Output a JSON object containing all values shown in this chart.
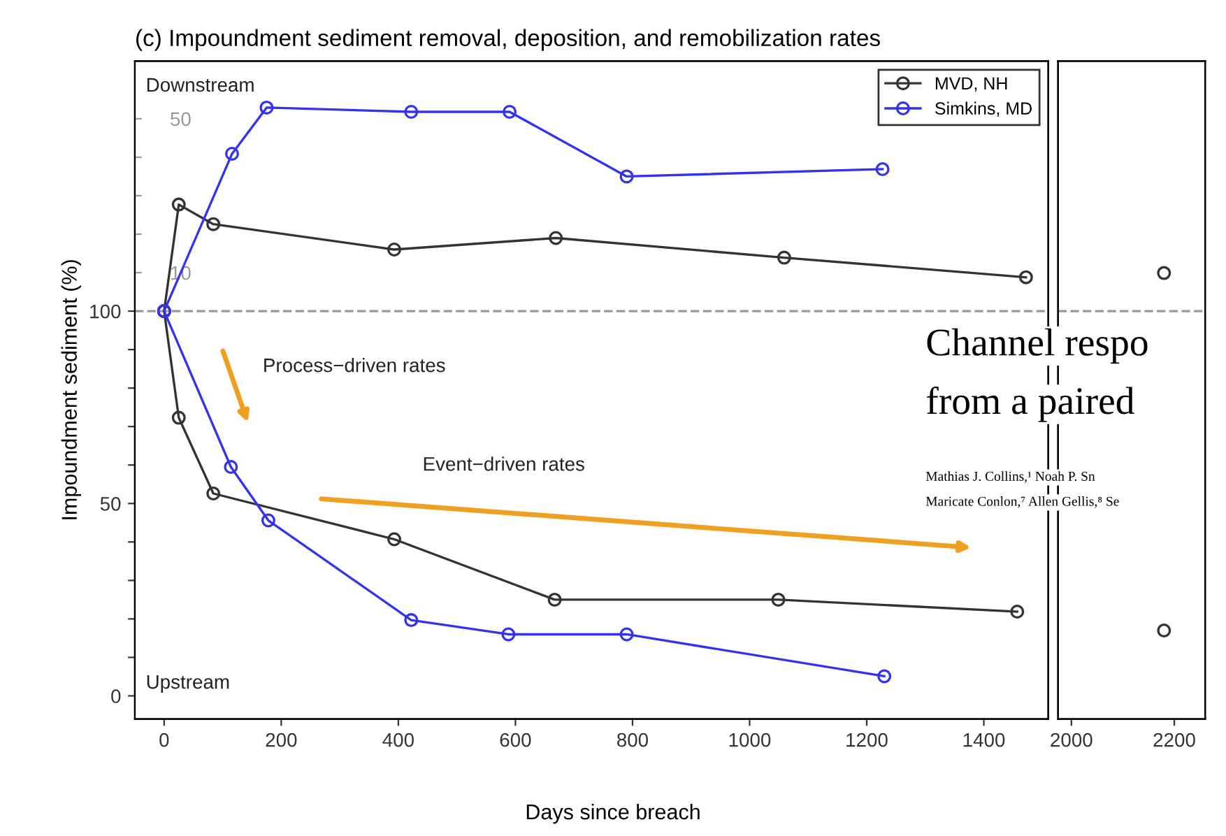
{
  "chart_data": [
    {
      "type": "line",
      "title": "(c) Impoundment sediment removal, deposition, and remobilization rates",
      "xlabel": "Days since breach",
      "ylabel": "Impoundment sediment (%)",
      "marker": "circle",
      "line_style": "solid",
      "grid": false,
      "legend": "top right",
      "xlim": [
        -50,
        1510
      ],
      "xticks": [
        0,
        200,
        400,
        600,
        800,
        1000,
        1200,
        1400
      ],
      "ylim": [
        -6,
        165
      ],
      "yticks": [
        0,
        {
          "value": 10,
          "label": null
        },
        {
          "value": 20,
          "label": null
        },
        {
          "value": 30,
          "label": null
        },
        {
          "value": 40,
          "label": null
        },
        50,
        {
          "value": 60,
          "label": null
        },
        {
          "value": 70,
          "label": null
        },
        {
          "value": 80,
          "label": null
        },
        {
          "value": 90,
          "label": null
        },
        100
      ],
      "y2lim": [
        -106,
        65
      ],
      "y2ticks": [
        10,
        {
          "value": 20,
          "label": null
        },
        {
          "value": 30,
          "label": null
        },
        {
          "value": 40,
          "label": null
        },
        50
      ],
      "ref_lines": [
        {
          "axis": "y",
          "value": 100,
          "color": "#999999",
          "line_style": "dashed"
        }
      ],
      "series": [
        {
          "name": "MVD, NH",
          "color": "#333333",
          "axis": "y2",
          "x": [
            0,
            25,
            84,
            393,
            669,
            1059,
            1472
          ],
          "values": [
            0,
            27.7,
            22.6,
            16,
            19,
            13.9,
            8.8
          ]
        },
        {
          "name": "Simkins, MD",
          "color": "#3333ee",
          "axis": "y2",
          "x": [
            0,
            116,
            175,
            422,
            590,
            790,
            1227
          ],
          "values": [
            0,
            40.9,
            52.9,
            51.8,
            51.8,
            35,
            36.9
          ]
        },
        {
          "color": "#333333",
          "x": [
            0,
            25,
            84,
            393,
            667,
            1049,
            1457
          ],
          "values": [
            100,
            72.3,
            52.6,
            40.7,
            25,
            25,
            21.9
          ]
        },
        {
          "color": "#3333ee",
          "x": [
            0,
            114,
            178,
            422,
            588,
            790,
            1230
          ],
          "values": [
            100,
            59.5,
            45.6,
            19.7,
            16,
            16,
            5.1
          ]
        }
      ],
      "annotations": [
        "Downstream",
        "Upstream",
        "Process−driven rates",
        "Event−driven rates",
        "Channel respo",
        "from a paired",
        "Mathias J. Collins,¹ Noah P. Sn",
        "Maricate Conlon,⁷ Allen Gellis,⁸ Se"
      ]
    },
    {
      "type": "line",
      "marker": "circle",
      "line_style": "solid",
      "grid": false,
      "tick_labels": "x",
      "xlim": [
        1974,
        2260
      ],
      "xticks": [
        2000,
        2200
      ],
      "ylim": [
        -6,
        165
      ],
      "y2lim": [
        -106,
        65
      ],
      "ref_lines": [
        {
          "axis": "y",
          "value": 100,
          "color": "#999999",
          "line_style": "dashed"
        }
      ],
      "series": [
        {
          "color": "#333333",
          "axis": "y2",
          "x": [
            2180
          ],
          "values": [
            9.9
          ]
        },
        {
          "color": "#333333",
          "x": [
            2180
          ],
          "values": [
            17
          ]
        }
      ]
    }
  ]
}
